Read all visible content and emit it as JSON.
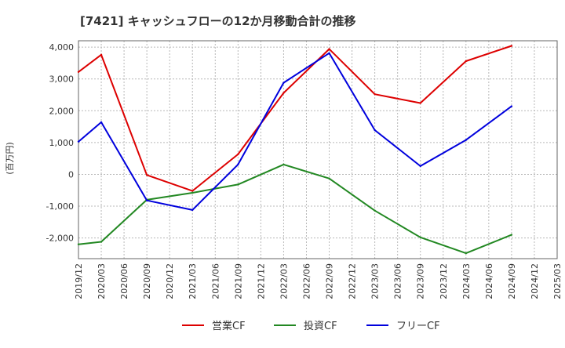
{
  "chart_data": {
    "type": "line",
    "title": "[7421]  キャッシュフローの12か月移動合計の推移",
    "ylabel": "(百万円)",
    "xlabel": "",
    "ylim": [
      -2650,
      4200
    ],
    "yticks": [
      4000,
      3000,
      2000,
      1000,
      0,
      -1000,
      -2000
    ],
    "ytick_labels": [
      "4,000",
      "3,000",
      "2,000",
      "1,000",
      "0",
      "-1,000",
      "-2,000"
    ],
    "categories": [
      "2019/12",
      "2020/03",
      "2020/06",
      "2020/09",
      "2020/12",
      "2021/03",
      "2021/06",
      "2021/09",
      "2021/12",
      "2022/03",
      "2022/06",
      "2022/09",
      "2022/12",
      "2023/03",
      "2023/06",
      "2023/09",
      "2023/12",
      "2024/03",
      "2024/06",
      "2024/09",
      "2024/12",
      "2025/03"
    ],
    "grid": true,
    "legend_position": "bottom-center",
    "series": [
      {
        "name": "営業CF",
        "color": "#dd0000",
        "values": [
          3220,
          3760,
          null,
          -20,
          null,
          -520,
          null,
          630,
          null,
          2560,
          null,
          3940,
          null,
          2520,
          null,
          2240,
          null,
          3560,
          null,
          4040,
          null,
          null
        ]
      },
      {
        "name": "投資CF",
        "color": "#228822",
        "values": [
          -2200,
          -2120,
          null,
          -800,
          null,
          -580,
          null,
          -320,
          null,
          310,
          null,
          -130,
          null,
          -1140,
          null,
          -1980,
          null,
          -2480,
          null,
          -1900,
          null,
          null
        ]
      },
      {
        "name": "フリーCF",
        "color": "#0000dd",
        "values": [
          1030,
          1640,
          null,
          -820,
          null,
          -1120,
          null,
          310,
          null,
          2880,
          null,
          3810,
          null,
          1390,
          null,
          260,
          null,
          1080,
          null,
          2140,
          null,
          null
        ]
      }
    ]
  }
}
